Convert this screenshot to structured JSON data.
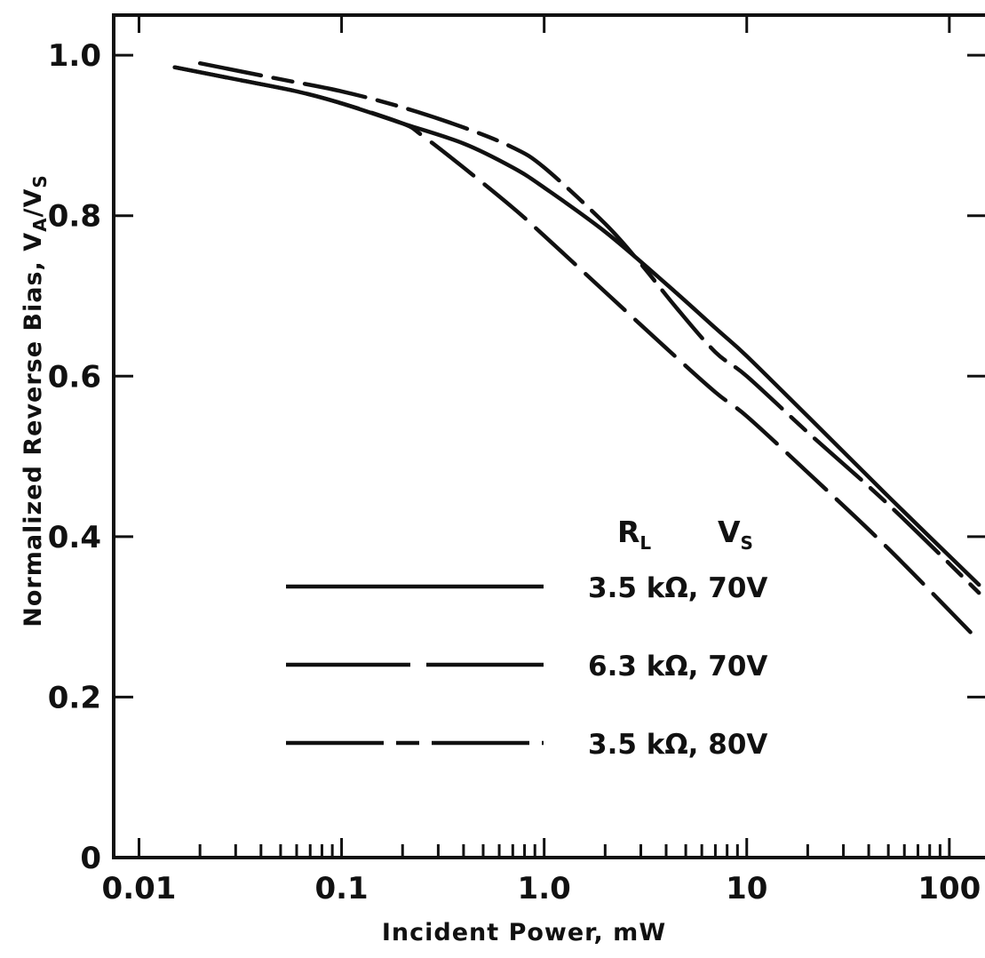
{
  "chart_data": {
    "type": "line",
    "title": "",
    "xlabel": "Incident Power, mW",
    "ylabel": "Normalized Reverse Bias, V",
    "ylabel_sub_a": "A",
    "ylabel_slash": "/V",
    "ylabel_sub_s": "S",
    "x_scale": "log",
    "xlim": [
      0.0075,
      150
    ],
    "ylim": [
      0,
      1.05
    ],
    "x_ticks": [
      {
        "value": 0.01,
        "label": "0.01"
      },
      {
        "value": 0.1,
        "label": "0.1"
      },
      {
        "value": 1,
        "label": "1.0"
      },
      {
        "value": 10,
        "label": "10"
      },
      {
        "value": 100,
        "label": "100"
      }
    ],
    "y_ticks": [
      {
        "value": 0,
        "label": "0"
      },
      {
        "value": 0.2,
        "label": "0.2"
      },
      {
        "value": 0.4,
        "label": "0.4"
      },
      {
        "value": 0.6,
        "label": "0.6"
      },
      {
        "value": 0.8,
        "label": "0.8"
      },
      {
        "value": 1.0,
        "label": "1.0"
      }
    ],
    "grid": false,
    "legend": {
      "placement": "lower-right",
      "header_rl": "R",
      "header_rl_sub": "L",
      "header_vs": "V",
      "header_vs_sub": "S"
    },
    "series": [
      {
        "name": "3.5 kΩ, 70V",
        "style": "solid",
        "x": [
          0.015,
          0.03,
          0.06,
          0.1,
          0.2,
          0.4,
          0.7,
          1.0,
          2.0,
          4.0,
          7.0,
          10,
          20,
          50,
          140
        ],
        "y": [
          0.985,
          0.97,
          0.955,
          0.94,
          0.915,
          0.89,
          0.86,
          0.835,
          0.78,
          0.715,
          0.66,
          0.625,
          0.55,
          0.45,
          0.34
        ]
      },
      {
        "name": "6.3 kΩ, 70V",
        "style": "long-dash",
        "x": [
          0.015,
          0.03,
          0.06,
          0.1,
          0.2,
          0.25,
          0.4,
          0.7,
          1.0,
          2.0,
          4.0,
          7.0,
          10,
          20,
          50,
          140
        ],
        "y": [
          0.985,
          0.97,
          0.955,
          0.94,
          0.915,
          0.9,
          0.86,
          0.81,
          0.775,
          0.705,
          0.635,
          0.58,
          0.55,
          0.48,
          0.385,
          0.27
        ]
      },
      {
        "name": "3.5 kΩ, 80V",
        "style": "dash-dot",
        "x": [
          0.02,
          0.05,
          0.1,
          0.2,
          0.4,
          0.7,
          1.0,
          2.0,
          3.0,
          4.5,
          7.0,
          10,
          20,
          50,
          140
        ],
        "y": [
          0.99,
          0.97,
          0.955,
          0.935,
          0.91,
          0.885,
          0.86,
          0.79,
          0.74,
          0.685,
          0.63,
          0.6,
          0.53,
          0.44,
          0.33
        ]
      }
    ]
  }
}
